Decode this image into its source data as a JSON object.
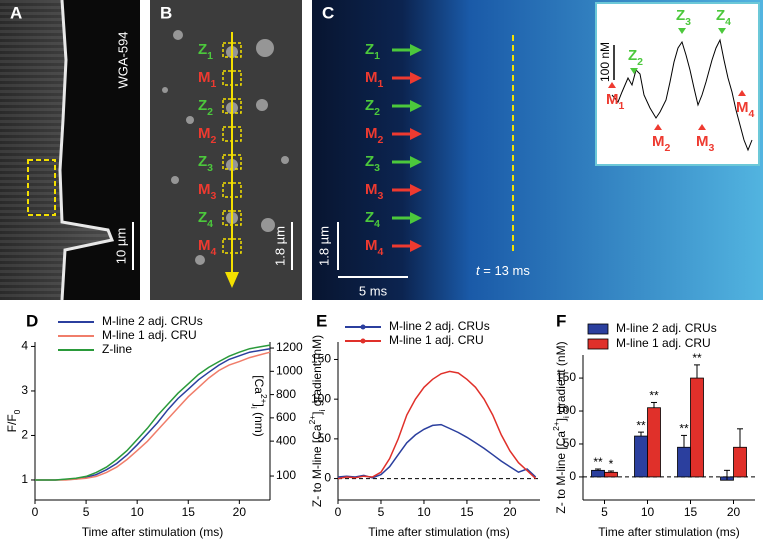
{
  "panels": {
    "A": {
      "label": "A",
      "stain": "WGA-594",
      "scale": "10 µm"
    },
    "B": {
      "label": "B",
      "scale": "1.8 µm",
      "markers": [
        {
          "main": "Z",
          "sub": "1"
        },
        {
          "main": "M",
          "sub": "1"
        },
        {
          "main": "Z",
          "sub": "2"
        },
        {
          "main": "M",
          "sub": "2"
        },
        {
          "main": "Z",
          "sub": "3"
        },
        {
          "main": "M",
          "sub": "3"
        },
        {
          "main": "Z",
          "sub": "4"
        },
        {
          "main": "M",
          "sub": "4"
        }
      ]
    },
    "C": {
      "label": "C",
      "scale_y": "1.8 µm",
      "scale_x": "5 ms",
      "time": {
        "var": "t",
        "rest": " = 13 ms"
      },
      "markers": [
        {
          "main": "Z",
          "sub": "1"
        },
        {
          "main": "M",
          "sub": "1"
        },
        {
          "main": "Z",
          "sub": "2"
        },
        {
          "main": "M",
          "sub": "2"
        },
        {
          "main": "Z",
          "sub": "3"
        },
        {
          "main": "M",
          "sub": "3"
        },
        {
          "main": "Z",
          "sub": "4"
        },
        {
          "main": "M",
          "sub": "4"
        }
      ],
      "inset": {
        "scale": "100 nM",
        "markers": [
          {
            "main": "Z",
            "sub": "2"
          },
          {
            "main": "Z",
            "sub": "3"
          },
          {
            "main": "Z",
            "sub": "4"
          },
          {
            "main": "M",
            "sub": "1"
          },
          {
            "main": "M",
            "sub": "2"
          },
          {
            "main": "M",
            "sub": "3"
          },
          {
            "main": "M",
            "sub": "4"
          }
        ]
      }
    }
  },
  "chart_data": [
    {
      "type": "line",
      "label": "D",
      "x": [
        0,
        1,
        2,
        3,
        4,
        5,
        6,
        7,
        8,
        9,
        10,
        11,
        12,
        13,
        14,
        15,
        16,
        17,
        18,
        19,
        20,
        21,
        22,
        23
      ],
      "xlim": [
        0,
        23
      ],
      "xticks": [
        0,
        5,
        10,
        15,
        20
      ],
      "xlabel": "Time after stimulation (ms)",
      "ylabel": {
        "main": "F/F",
        "sub": "0"
      },
      "ylim": [
        0.55,
        4.1
      ],
      "yticks": [
        1,
        2,
        3,
        4
      ],
      "y2label": {
        "pre": "[Ca",
        "sup": "2+",
        "mid": "]",
        "sub": "i",
        "post": " (nm)"
      },
      "y2lim": [
        -106,
        1252
      ],
      "y2ticks": [
        100,
        400,
        600,
        800,
        1000,
        1200
      ],
      "legend": "top-left",
      "series": [
        {
          "name": "M-line 2 adj. CRUs",
          "color": "#2b3f9e",
          "values": [
            1,
            1,
            1,
            1.01,
            1.02,
            1.06,
            1.12,
            1.23,
            1.37,
            1.56,
            1.79,
            2.04,
            2.29,
            2.58,
            2.83,
            3.04,
            3.25,
            3.42,
            3.58,
            3.71,
            3.79,
            3.87,
            3.91,
            3.95
          ]
        },
        {
          "name": "M-line 1 adj. CRU",
          "color": "#f07d6a",
          "values": [
            1,
            1,
            1,
            1,
            1.02,
            1.04,
            1.08,
            1.17,
            1.29,
            1.46,
            1.66,
            1.87,
            2.12,
            2.37,
            2.62,
            2.87,
            3.08,
            3.29,
            3.46,
            3.58,
            3.66,
            3.75,
            3.81,
            3.87
          ]
        },
        {
          "name": "Z-line",
          "color": "#2a9a3a",
          "values": [
            1,
            1,
            1,
            1.02,
            1.04,
            1.08,
            1.17,
            1.29,
            1.46,
            1.66,
            1.91,
            2.16,
            2.45,
            2.7,
            2.95,
            3.16,
            3.37,
            3.53,
            3.66,
            3.78,
            3.87,
            3.95,
            3.99,
            4.03
          ]
        }
      ]
    },
    {
      "type": "line",
      "label": "E",
      "x": [
        0,
        1,
        2,
        3,
        4,
        5,
        6,
        7,
        8,
        9,
        10,
        11,
        12,
        13,
        14,
        15,
        16,
        17,
        18,
        19,
        20,
        21,
        22,
        23
      ],
      "xlim": [
        0,
        23.5
      ],
      "xticks": [
        0,
        5,
        10,
        15,
        20
      ],
      "xlabel": "Time after stimulation (ms)",
      "ylabel": {
        "pre": "Z- to M-line [Ca",
        "sup": "2+",
        "mid": "]",
        "sub": "i",
        "post": " gradient (nM)"
      },
      "ylim": [
        -27,
        172
      ],
      "yticks": [
        0,
        50,
        100,
        150
      ],
      "zero_line": true,
      "legend": "top-left",
      "series": [
        {
          "name": "M-line 2 adj. CRUs",
          "color": "#2b3f9e",
          "values": [
            2,
            3,
            2,
            4,
            1,
            5,
            15,
            30,
            45,
            55,
            62,
            67,
            68,
            63,
            58,
            52,
            45,
            38,
            30,
            22,
            15,
            8,
            12,
            2
          ]
        },
        {
          "name": "M-line 1 adj. CRU",
          "color": "#e0302a",
          "values": [
            0,
            2,
            1,
            3,
            2,
            8,
            25,
            50,
            80,
            100,
            115,
            125,
            132,
            135,
            133,
            125,
            115,
            100,
            80,
            55,
            35,
            20,
            10,
            0
          ]
        }
      ]
    },
    {
      "type": "bar",
      "label": "F",
      "categories": [
        "5",
        "10",
        "15",
        "20"
      ],
      "xlabel": "Time after stimulation (ms)",
      "ylabel": {
        "pre": "Z- to M-line [Ca",
        "sup": "2+",
        "mid": "]",
        "sub": "i",
        "post": " gradient (nM)"
      },
      "ylim": [
        -35,
        185
      ],
      "yticks": [
        0,
        50,
        100,
        150
      ],
      "zero_line": true,
      "legend": "top",
      "series": [
        {
          "name": "M-line 2 adj. CRUs",
          "color": "#2b3f9e",
          "values": [
            10,
            62,
            45,
            -5
          ],
          "errors": [
            2,
            6,
            18,
            15
          ],
          "markers": [
            "**",
            "**",
            "**",
            null
          ]
        },
        {
          "name": "M-line 1 adj. CRU",
          "color": "#e0302a",
          "values": [
            7,
            105,
            150,
            45
          ],
          "errors": [
            2,
            8,
            20,
            28
          ],
          "markers": [
            "*",
            "**",
            "**",
            null
          ]
        }
      ]
    }
  ]
}
